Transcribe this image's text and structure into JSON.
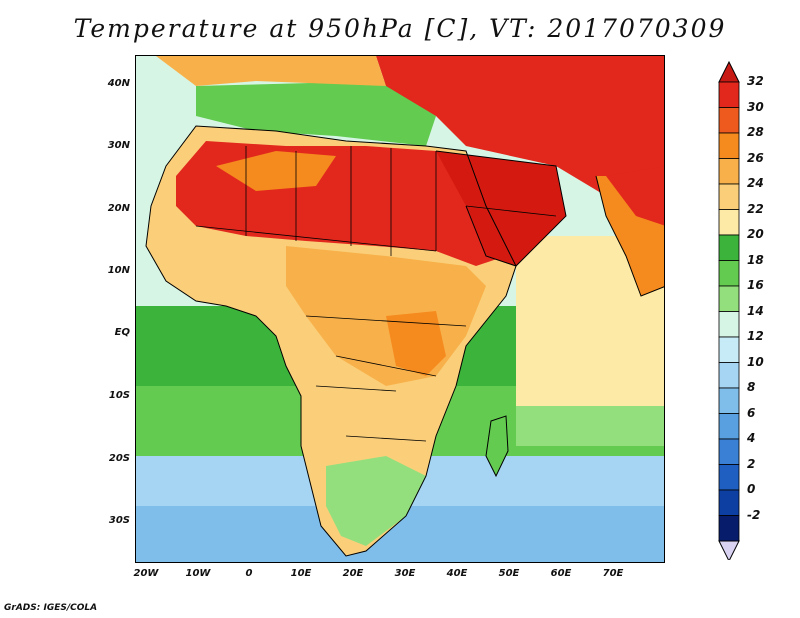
{
  "title": "Temperature at 950hPa [C], VT: 2017070309",
  "credit": "GrADS: IGES/COLA",
  "lat_ticks": [
    "40N",
    "30N",
    "20N",
    "10N",
    "EQ",
    "10S",
    "20S",
    "30S"
  ],
  "lon_ticks": [
    "20W",
    "10W",
    "0",
    "10E",
    "20E",
    "30E",
    "40E",
    "50E",
    "60E",
    "70E"
  ],
  "colorbar": {
    "labels": [
      "32",
      "30",
      "28",
      "26",
      "24",
      "22",
      "20",
      "18",
      "16",
      "14",
      "12",
      "10",
      "8",
      "6",
      "4",
      "2",
      "0",
      "-2"
    ],
    "colors": [
      "#e2271d",
      "#ee5a1e",
      "#f58a1e",
      "#f8b14a",
      "#fbcf7a",
      "#fdeaa6",
      "#3cb43c",
      "#63cb50",
      "#94df7d",
      "#d7f5e5",
      "#c8ecf7",
      "#a6d5f3",
      "#7fbdeb",
      "#58a0e0",
      "#3a80d4",
      "#205fc2",
      "#0d3fa3",
      "#071d6c"
    ],
    "top_color": "#c81a14",
    "bottom_color": "#d9d2f0"
  },
  "palette": {
    "sea_far": "#d7f5e5",
    "sea_cold": "#a6d5f3",
    "sea_cool": "#63cb50",
    "hot": "#e2271d",
    "very_hot": "#d41a10",
    "warm": "#f58a1e",
    "mild": "#fbcf7a",
    "green": "#3cb43c"
  }
}
